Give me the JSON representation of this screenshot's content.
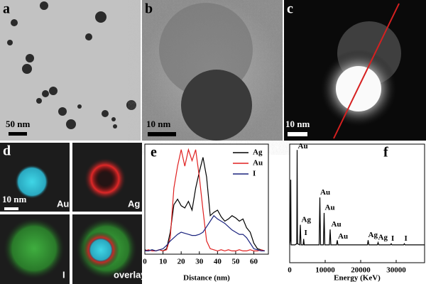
{
  "images": [
    {
      "label": "a",
      "scale_bar": "50 nm"
    },
    {
      "label": "b",
      "scale_bar": "10 nm"
    },
    {
      "label": "c",
      "scale_bar": "10 nm"
    }
  ],
  "maps": {
    "label": "d",
    "scale_bar": "10 nm",
    "tiles": [
      "Au",
      "Ag",
      "I",
      "overlay"
    ]
  },
  "chart_data": [
    {
      "type": "line",
      "label": "e",
      "x_label": "Distance (nm)",
      "x": [
        0,
        2,
        4,
        6,
        8,
        10,
        12,
        14,
        16,
        18,
        20,
        22,
        24,
        26,
        28,
        30,
        32,
        34,
        36,
        38,
        40,
        42,
        44,
        46,
        48,
        50,
        52,
        54,
        56,
        58,
        60,
        62,
        64,
        66
      ],
      "series": [
        {
          "name": "Ag",
          "color": "#000000",
          "values": [
            4,
            3,
            4,
            3,
            4,
            3,
            5,
            20,
            45,
            50,
            44,
            42,
            48,
            40,
            60,
            75,
            88,
            70,
            35,
            38,
            40,
            34,
            30,
            32,
            35,
            33,
            30,
            32,
            24,
            20,
            10,
            5,
            4,
            3
          ]
        },
        {
          "name": "Au",
          "color": "#e02020",
          "values": [
            3,
            4,
            3,
            3,
            4,
            3,
            4,
            15,
            60,
            80,
            95,
            80,
            95,
            85,
            95,
            70,
            40,
            12,
            5,
            4,
            3,
            4,
            3,
            4,
            3,
            3,
            4,
            3,
            3,
            4,
            3,
            3,
            4,
            3
          ]
        },
        {
          "name": "I",
          "color": "#1a237e",
          "values": [
            3,
            3,
            4,
            3,
            4,
            5,
            8,
            12,
            15,
            18,
            20,
            19,
            18,
            17,
            17,
            18,
            20,
            25,
            30,
            35,
            32,
            30,
            28,
            25,
            22,
            20,
            18,
            18,
            15,
            10,
            5,
            4,
            3,
            3
          ]
        }
      ],
      "xlim": [
        0,
        68
      ],
      "ylim": [
        0,
        100
      ],
      "xticks": [
        0,
        10,
        20,
        30,
        40,
        50,
        60
      ],
      "legend": "upper right"
    },
    {
      "type": "line",
      "label": "f",
      "x_label": "Energy (KeV)",
      "x": [
        0,
        200,
        300,
        400,
        1500,
        2000,
        2100,
        2200,
        2800,
        3000,
        3200,
        3800,
        3940,
        4100,
        8300,
        8500,
        8700,
        9500,
        9700,
        9900,
        11200,
        11400,
        11600,
        13200,
        13400,
        13600,
        21900,
        22100,
        22300,
        24700,
        24900,
        25100,
        28400,
        28600,
        28800,
        32100,
        32300,
        32500,
        38000
      ],
      "series": [
        {
          "color": "#000000",
          "values": [
            15,
            20,
            70,
            15,
            15,
            16,
            95,
            16,
            15,
            32,
            15,
            15,
            20,
            15,
            15,
            55,
            15,
            15,
            42,
            15,
            15,
            28,
            15,
            15,
            19,
            15,
            15,
            19,
            15,
            15,
            17,
            15,
            15,
            16,
            15,
            15,
            16,
            15,
            15
          ]
        }
      ],
      "xlim": [
        0,
        38000
      ],
      "ylim": [
        0,
        100
      ],
      "xticks": [
        0,
        10000,
        20000,
        30000
      ],
      "annotations": [
        {
          "text": "Au",
          "x": 2300,
          "y": 98
        },
        {
          "text": "Ag",
          "x": 3300,
          "y": 36
        },
        {
          "text": "I",
          "x": 4100,
          "y": 25
        },
        {
          "text": "Au",
          "x": 8600,
          "y": 59
        },
        {
          "text": "Au",
          "x": 9900,
          "y": 46
        },
        {
          "text": "Au",
          "x": 11700,
          "y": 32
        },
        {
          "text": "Au",
          "x": 13600,
          "y": 22
        },
        {
          "text": "Ag",
          "x": 22100,
          "y": 23
        },
        {
          "text": "Ag",
          "x": 24900,
          "y": 21
        },
        {
          "text": "I",
          "x": 28600,
          "y": 20
        },
        {
          "text": "I",
          "x": 32300,
          "y": 20
        }
      ]
    }
  ]
}
